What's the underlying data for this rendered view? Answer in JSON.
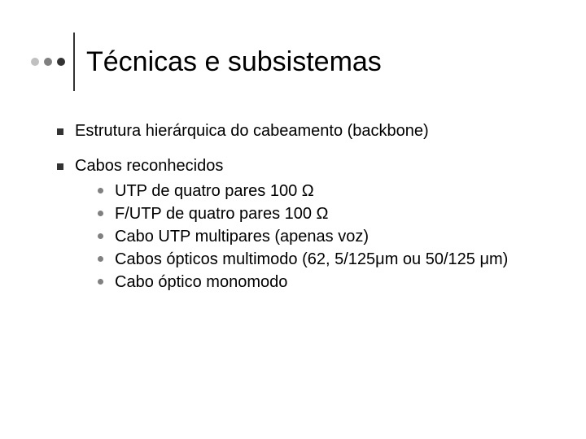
{
  "colors": {
    "dot1": "#c0c0c0",
    "dot2": "#808080",
    "dot3": "#333333",
    "vline": "#333333",
    "top_bullet": "#333333",
    "sub_bullet": "#808080",
    "text": "#000000",
    "background": "#ffffff"
  },
  "title": "Técnicas e subsistemas",
  "items": [
    {
      "text": "Estrutura hierárquica do cabeamento (backbone)",
      "subs": []
    },
    {
      "text": "Cabos reconhecidos",
      "subs": [
        "UTP de quatro pares 100 Ω",
        "F/UTP de quatro pares 100 Ω",
        "Cabo UTP multipares (apenas voz)",
        "Cabos ópticos multimodo (62, 5/125μm ou 50/125 μm)",
        "Cabo óptico monomodo"
      ]
    }
  ]
}
